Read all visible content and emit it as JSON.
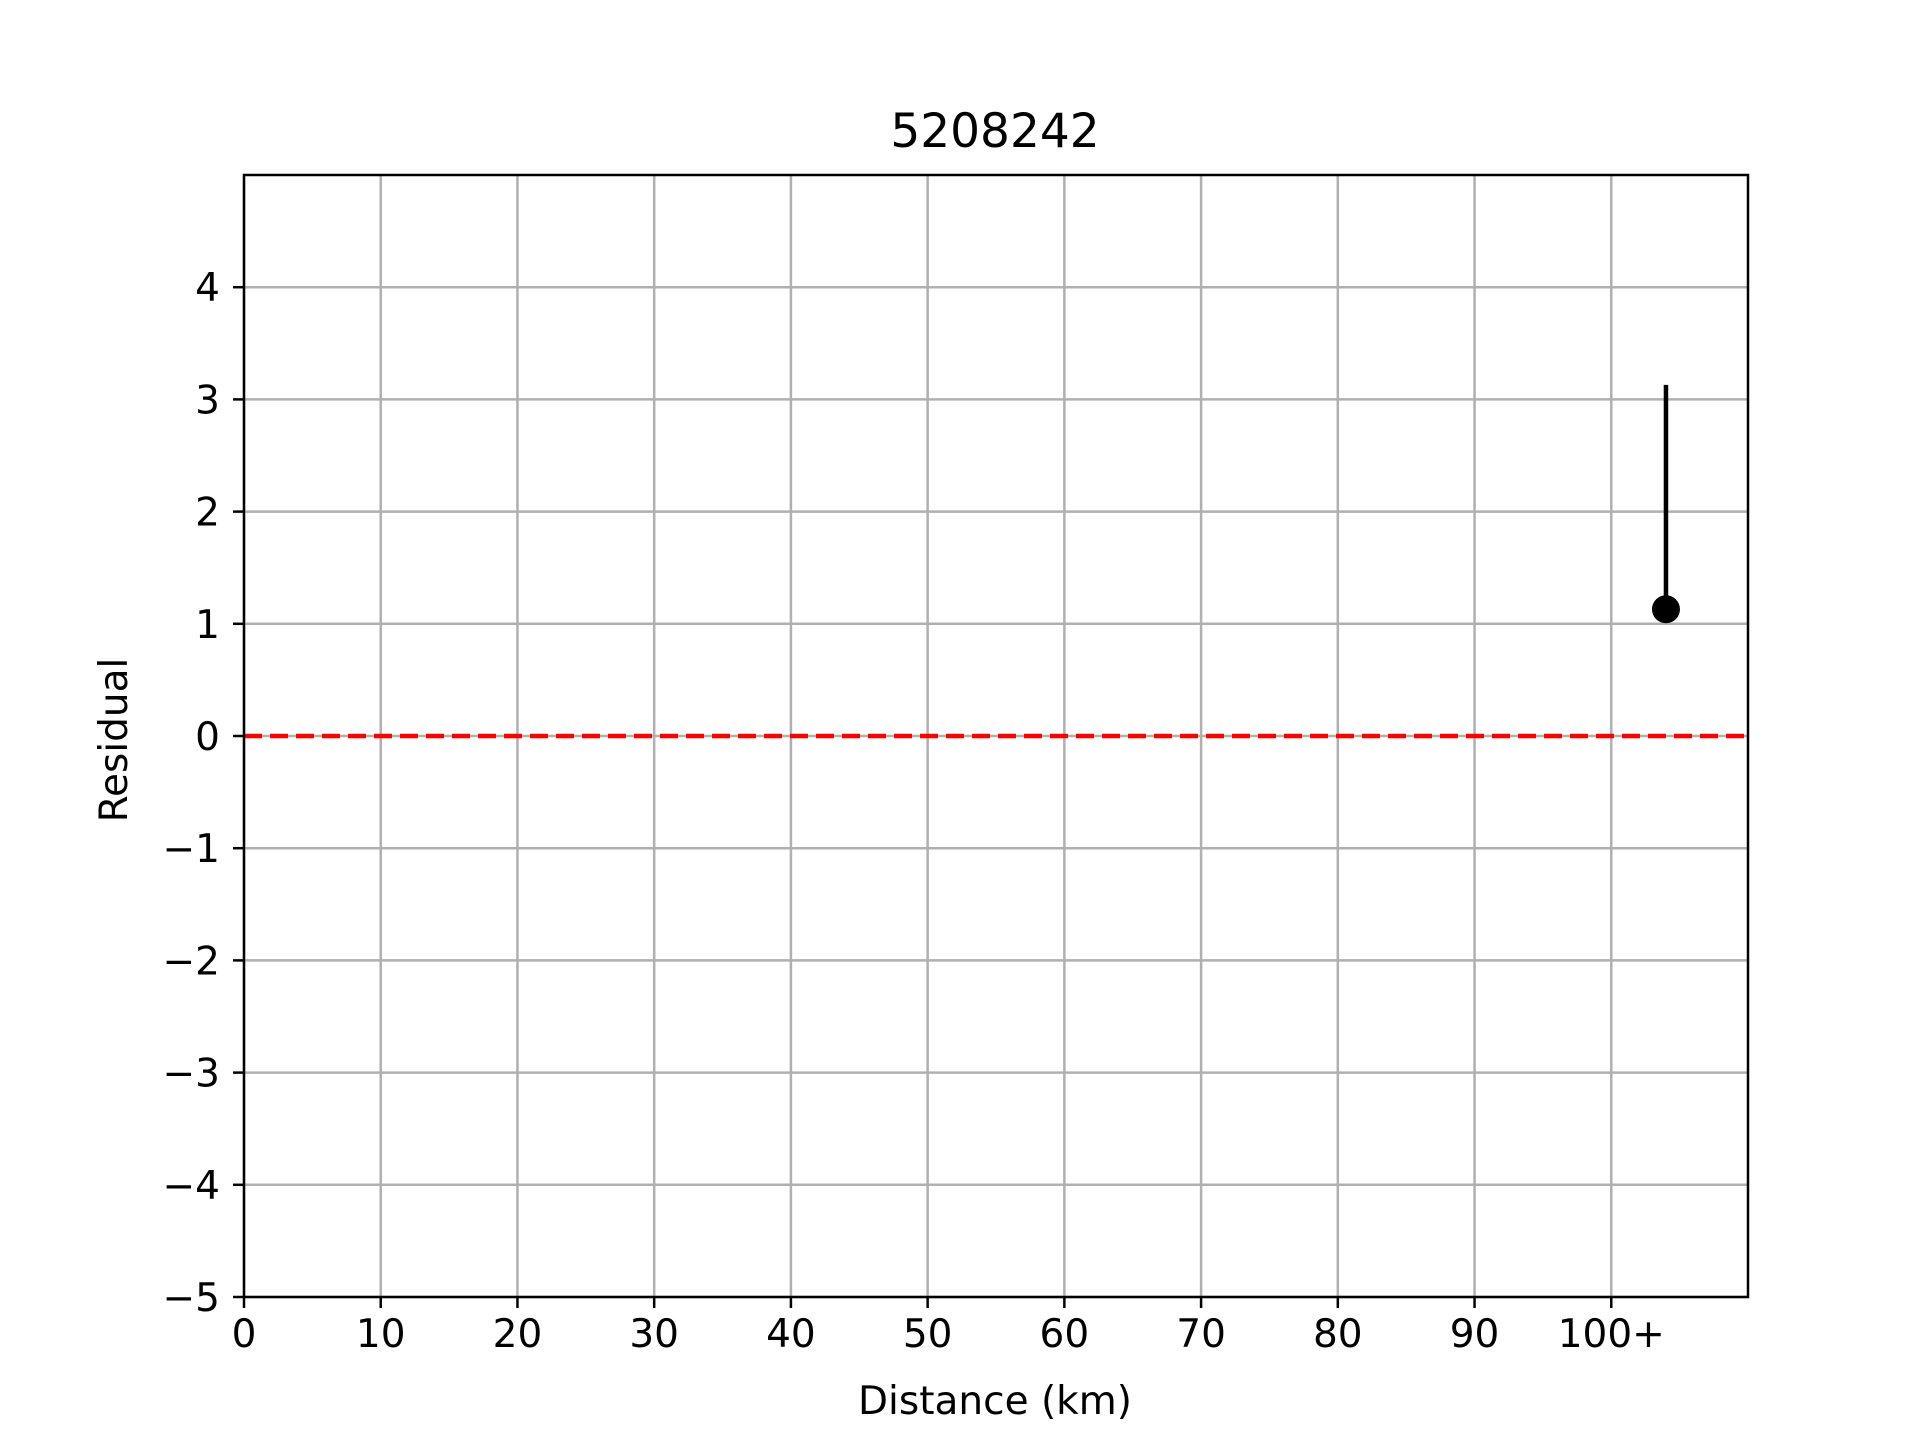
{
  "chart_data": {
    "type": "scatter",
    "title": "5208242",
    "xlabel": "Distance (km)",
    "ylabel": "Residual",
    "xlim": [
      0,
      110
    ],
    "ylim": [
      -5,
      5
    ],
    "x_ticks": [
      0,
      10,
      20,
      30,
      40,
      50,
      60,
      70,
      80,
      90,
      100
    ],
    "x_tick_labels": [
      "0",
      "10",
      "20",
      "30",
      "40",
      "50",
      "60",
      "70",
      "80",
      "90",
      "100+"
    ],
    "y_ticks": [
      -5,
      -4,
      -3,
      -2,
      -1,
      0,
      1,
      2,
      3,
      4
    ],
    "y_tick_labels": [
      "−5",
      "−4",
      "−3",
      "−2",
      "−1",
      "0",
      "1",
      "2",
      "3",
      "4"
    ],
    "grid": true,
    "points": [
      {
        "x": 104,
        "y": 1.13,
        "yerr_low": 0.0,
        "yerr_high": 2.0
      }
    ],
    "reference_line": {
      "y": 0,
      "color": "#ff0000",
      "style": "dashed"
    },
    "colors": {
      "point": "#000000",
      "grid": "#b0b0b0",
      "axes": "#000000"
    }
  }
}
